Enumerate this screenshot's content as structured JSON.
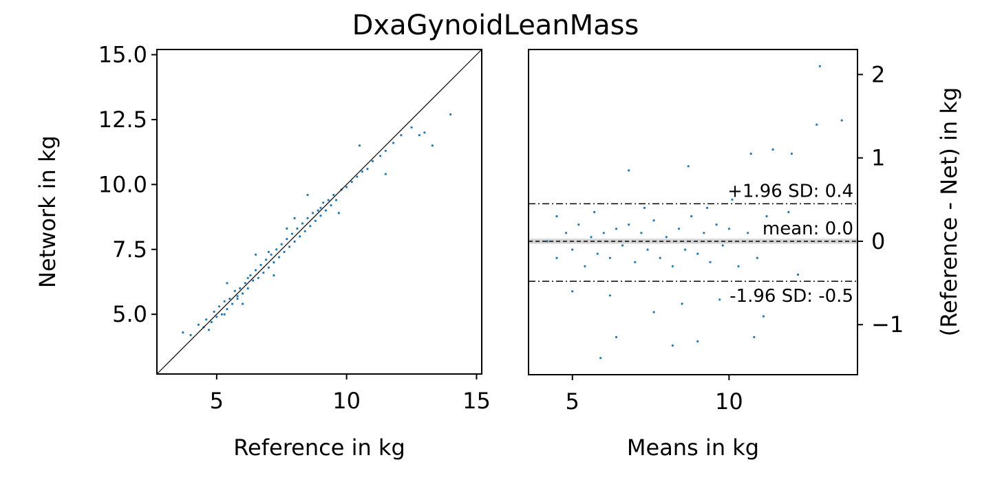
{
  "title": "DxaGynoidLeanMass",
  "colors": {
    "points": "#1f77b4",
    "ref_line": "#000000",
    "mean_band": "#d3d3d3",
    "axes": "#000000"
  },
  "chart_data": [
    {
      "type": "scatter",
      "name": "Reference vs Network",
      "xlabel": "Reference in kg",
      "ylabel": "Network in kg",
      "xlim": [
        2.7,
        15.2
      ],
      "ylim": [
        2.7,
        15.2
      ],
      "xticks": [
        5,
        10,
        15
      ],
      "xtick_labels": [
        "5",
        "10",
        "15"
      ],
      "yticks": [
        5.0,
        7.5,
        10.0,
        12.5,
        15.0
      ],
      "ytick_labels": [
        "5.0",
        "7.5",
        "10.0",
        "12.5",
        "15.0"
      ],
      "identity_line": true,
      "grid": false,
      "points": [
        [
          3.7,
          4.3
        ],
        [
          4.0,
          4.2
        ],
        [
          4.3,
          4.6
        ],
        [
          4.5,
          4.5
        ],
        [
          4.6,
          4.8
        ],
        [
          4.8,
          4.7
        ],
        [
          4.9,
          5.1
        ],
        [
          5.0,
          4.9
        ],
        [
          5.1,
          5.3
        ],
        [
          5.2,
          5.0
        ],
        [
          5.3,
          5.5
        ],
        [
          5.4,
          5.2
        ],
        [
          5.5,
          5.6
        ],
        [
          5.6,
          5.4
        ],
        [
          5.7,
          5.9
        ],
        [
          5.8,
          5.6
        ],
        [
          5.9,
          6.0
        ],
        [
          6.0,
          5.8
        ],
        [
          6.1,
          6.2
        ],
        [
          6.2,
          6.0
        ],
        [
          6.3,
          6.5
        ],
        [
          6.4,
          6.3
        ],
        [
          6.5,
          6.7
        ],
        [
          6.6,
          6.4
        ],
        [
          6.7,
          6.9
        ],
        [
          6.8,
          6.6
        ],
        [
          6.9,
          7.1
        ],
        [
          7.0,
          6.8
        ],
        [
          7.1,
          7.3
        ],
        [
          7.2,
          7.0
        ],
        [
          7.3,
          7.5
        ],
        [
          7.4,
          7.2
        ],
        [
          7.5,
          7.7
        ],
        [
          7.6,
          7.4
        ],
        [
          7.7,
          7.9
        ],
        [
          7.8,
          7.6
        ],
        [
          7.9,
          8.1
        ],
        [
          8.0,
          7.8
        ],
        [
          8.1,
          8.3
        ],
        [
          8.2,
          8.0
        ],
        [
          8.3,
          8.5
        ],
        [
          8.4,
          8.2
        ],
        [
          8.5,
          8.7
        ],
        [
          8.6,
          8.4
        ],
        [
          8.7,
          8.9
        ],
        [
          8.8,
          8.6
        ],
        [
          8.9,
          9.0
        ],
        [
          9.0,
          8.8
        ],
        [
          9.1,
          9.3
        ],
        [
          9.2,
          9.0
        ],
        [
          9.3,
          9.4
        ],
        [
          9.4,
          9.2
        ],
        [
          9.5,
          9.6
        ],
        [
          9.6,
          9.4
        ],
        [
          9.8,
          9.8
        ],
        [
          10.0,
          9.9
        ],
        [
          10.2,
          10.1
        ],
        [
          10.4,
          10.3
        ],
        [
          10.6,
          10.5
        ],
        [
          10.8,
          10.6
        ],
        [
          11.0,
          10.9
        ],
        [
          11.3,
          11.1
        ],
        [
          11.5,
          11.3
        ],
        [
          11.8,
          11.6
        ],
        [
          12.1,
          11.9
        ],
        [
          12.5,
          12.2
        ],
        [
          12.8,
          11.9
        ],
        [
          13.3,
          11.5
        ],
        [
          13.0,
          12.0
        ],
        [
          14.0,
          12.7
        ],
        [
          6.5,
          7.3
        ],
        [
          7.2,
          6.5
        ],
        [
          8.5,
          9.6
        ],
        [
          9.7,
          8.9
        ],
        [
          5.4,
          6.2
        ],
        [
          6.0,
          5.4
        ],
        [
          10.5,
          11.5
        ],
        [
          11.5,
          10.4
        ],
        [
          8.0,
          8.7
        ],
        [
          7.0,
          7.4
        ],
        [
          6.2,
          6.4
        ],
        [
          9.0,
          9.1
        ],
        [
          5.8,
          5.7
        ],
        [
          4.7,
          4.4
        ],
        [
          5.3,
          5.0
        ],
        [
          7.7,
          8.3
        ]
      ]
    },
    {
      "type": "scatter",
      "name": "Bland-Altman",
      "xlabel": "Means in kg",
      "ylabel": "(Reference - Net) in kg",
      "xlim": [
        3.6,
        14.1
      ],
      "ylim": [
        -1.6,
        2.3
      ],
      "xticks": [
        5,
        10
      ],
      "xtick_labels": [
        "5",
        "10"
      ],
      "yticks": [
        -1,
        0,
        1,
        2
      ],
      "ytick_labels": [
        "−1",
        "0",
        "1",
        "2"
      ],
      "mean": 0.0,
      "upper_loa": 0.45,
      "lower_loa": -0.48,
      "mean_label": "mean: 0.0",
      "upper_label": "+1.96 SD: 0.4",
      "lower_label": "-1.96 SD: -0.5",
      "grid": false,
      "points": [
        [
          4.2,
          0.0
        ],
        [
          4.5,
          -0.2
        ],
        [
          4.8,
          0.1
        ],
        [
          5.0,
          -0.1
        ],
        [
          5.2,
          0.2
        ],
        [
          5.4,
          -0.3
        ],
        [
          5.6,
          0.05
        ],
        [
          5.8,
          -0.15
        ],
        [
          6.0,
          0.1
        ],
        [
          6.2,
          -0.2
        ],
        [
          6.4,
          0.15
        ],
        [
          6.6,
          -0.05
        ],
        [
          6.8,
          0.2
        ],
        [
          7.0,
          -0.25
        ],
        [
          7.2,
          0.1
        ],
        [
          7.4,
          -0.1
        ],
        [
          7.6,
          0.25
        ],
        [
          7.8,
          -0.2
        ],
        [
          8.0,
          0.05
        ],
        [
          8.2,
          -0.3
        ],
        [
          8.4,
          0.15
        ],
        [
          8.6,
          -0.1
        ],
        [
          8.8,
          0.3
        ],
        [
          9.0,
          -0.15
        ],
        [
          9.2,
          0.1
        ],
        [
          9.4,
          -0.25
        ],
        [
          9.6,
          0.2
        ],
        [
          9.8,
          -0.05
        ],
        [
          10.0,
          0.15
        ],
        [
          10.3,
          -0.3
        ],
        [
          10.6,
          0.1
        ],
        [
          10.9,
          -0.2
        ],
        [
          11.2,
          0.3
        ],
        [
          6.8,
          0.85
        ],
        [
          8.7,
          0.9
        ],
        [
          11.4,
          1.1
        ],
        [
          12.0,
          1.05
        ],
        [
          12.8,
          1.4
        ],
        [
          13.6,
          1.45
        ],
        [
          12.9,
          2.1
        ],
        [
          10.7,
          1.05
        ],
        [
          5.9,
          -1.4
        ],
        [
          6.4,
          -1.15
        ],
        [
          8.2,
          -1.25
        ],
        [
          9.0,
          -1.2
        ],
        [
          10.8,
          -1.15
        ],
        [
          7.6,
          -0.85
        ],
        [
          11.1,
          -0.9
        ],
        [
          8.5,
          -0.75
        ],
        [
          5.0,
          -0.6
        ],
        [
          6.2,
          -0.65
        ],
        [
          9.7,
          -0.7
        ],
        [
          5.7,
          0.35
        ],
        [
          7.3,
          0.4
        ],
        [
          9.3,
          0.4
        ],
        [
          10.1,
          0.5
        ],
        [
          4.5,
          0.3
        ],
        [
          12.2,
          -0.4
        ],
        [
          11.9,
          0.35
        ]
      ]
    }
  ]
}
